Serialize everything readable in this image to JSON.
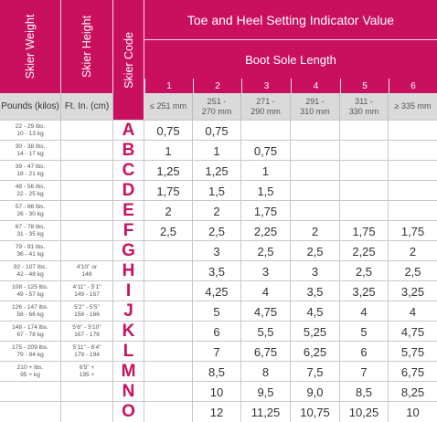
{
  "header": {
    "skier_weight": "Skier Weight",
    "skier_height": "Skier Height",
    "skier_code": "Skier Code",
    "title": "Toe and Heel Setting Indicator Value",
    "subtitle": "Boot Sole Length",
    "col_numbers": [
      "1",
      "2",
      "3",
      "4",
      "5",
      "6"
    ],
    "weight_unit": "Pounds (kilos)",
    "height_unit": "Ft. In. (cm)",
    "boot_lengths": [
      "≤ 251 mm",
      "251 -\n270 mm",
      "271 -\n290 mm",
      "291 -\n310 mm",
      "311 -\n330 mm",
      "≥ 335 mm"
    ]
  },
  "rows": [
    {
      "weight": "22 - 29 lbs.\n10 - 13 kg",
      "height": "",
      "code": "A",
      "values": [
        "0,75",
        "0,75",
        "",
        "",
        "",
        ""
      ]
    },
    {
      "weight": "30 - 38 lbs.\n14 - 17 kg",
      "height": "",
      "code": "B",
      "values": [
        "1",
        "1",
        "0,75",
        "",
        "",
        ""
      ]
    },
    {
      "weight": "39 - 47 lbs.\n18 - 21 kg",
      "height": "",
      "code": "C",
      "values": [
        "1,25",
        "1,25",
        "1",
        "",
        "",
        ""
      ]
    },
    {
      "weight": "48 - 56 lbs.\n22 - 25 kg",
      "height": "",
      "code": "D",
      "values": [
        "1,75",
        "1,5",
        "1,5",
        "",
        "",
        ""
      ]
    },
    {
      "weight": "57 - 66 lbs.\n26 - 30 kg",
      "height": "",
      "code": "E",
      "values": [
        "2",
        "2",
        "1,75",
        "",
        "",
        ""
      ]
    },
    {
      "weight": "67 - 78 lbs.\n31 - 35 kg",
      "height": "",
      "code": "F",
      "values": [
        "2,5",
        "2,5",
        "2,25",
        "2",
        "1,75",
        "1,75"
      ]
    },
    {
      "weight": "79 - 91 lbs.\n36 - 41 kg",
      "height": "",
      "code": "G",
      "values": [
        "",
        "3",
        "2,5",
        "2,5",
        "2,25",
        "2"
      ]
    },
    {
      "weight": "92 - 107 lbs.\n42 - 48 kg",
      "height": "4'10\" or\n148",
      "code": "H",
      "values": [
        "",
        "3,5",
        "3",
        "3",
        "2,5",
        "2,5"
      ]
    },
    {
      "weight": "108 - 125 lbs.\n49 - 57 kg",
      "height": "4'11\" - 5'1\"\n149 - 157",
      "code": "I",
      "values": [
        "",
        "4,25",
        "4",
        "3,5",
        "3,25",
        "3,25"
      ]
    },
    {
      "weight": "126 - 147 lbs.\n58 - 66 kg",
      "height": "5'2\" - 5'5\"\n158 - 166",
      "code": "J",
      "values": [
        "",
        "5",
        "4,75",
        "4,5",
        "4",
        "4"
      ]
    },
    {
      "weight": "148 - 174 lbs.\n67 - 78 kg",
      "height": "5'6\" - 5'10\"\n167 - 178",
      "code": "K",
      "values": [
        "",
        "6",
        "5,5",
        "5,25",
        "5",
        "4,75"
      ]
    },
    {
      "weight": "175 - 209 lbs.\n79 - 94 kg",
      "height": "5'11\" - 6'4\"\n179 - 194",
      "code": "L",
      "values": [
        "",
        "7",
        "6,75",
        "6,25",
        "6",
        "5,75"
      ]
    },
    {
      "weight": "210 + lbs.\n95 + kg",
      "height": "6'5\" +\n195 +",
      "code": "M",
      "values": [
        "",
        "8,5",
        "8",
        "7,5",
        "7",
        "6,75"
      ]
    },
    {
      "weight": "",
      "height": "",
      "code": "N",
      "values": [
        "",
        "10",
        "9,5",
        "9,0",
        "8,5",
        "8,25"
      ]
    },
    {
      "weight": "",
      "height": "",
      "code": "O",
      "values": [
        "",
        "12",
        "11,25",
        "10,75",
        "10,25",
        "10"
      ]
    }
  ]
}
